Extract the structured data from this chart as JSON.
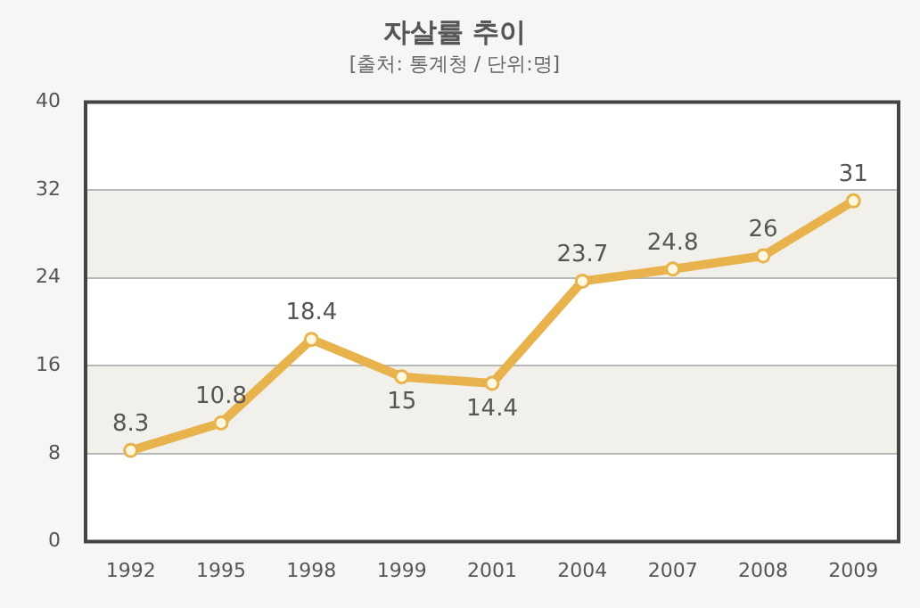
{
  "chart_data": {
    "type": "line",
    "title": "자살률 추이",
    "subtitle": "[출처: 통계청 / 단위:명]",
    "categories": [
      "1992",
      "1995",
      "1998",
      "1999",
      "2001",
      "2004",
      "2007",
      "2008",
      "2009"
    ],
    "series": [
      {
        "color": "#e8b24c",
        "values": [
          8.3,
          10.8,
          18.4,
          15,
          14.4,
          23.7,
          24.8,
          26,
          31
        ]
      }
    ],
    "ylim": [
      0,
      40
    ],
    "yticks": [
      0,
      8,
      16,
      24,
      32,
      40
    ],
    "grid": "y",
    "legend": false,
    "marker": "circle",
    "line_style": "solid",
    "data_labels": true,
    "bands": [
      {
        "axis": "y",
        "from": 8,
        "to": 16,
        "color": "#f1f0ea"
      },
      {
        "axis": "y",
        "from": 24,
        "to": 32,
        "color": "#f1f0ea"
      }
    ]
  }
}
